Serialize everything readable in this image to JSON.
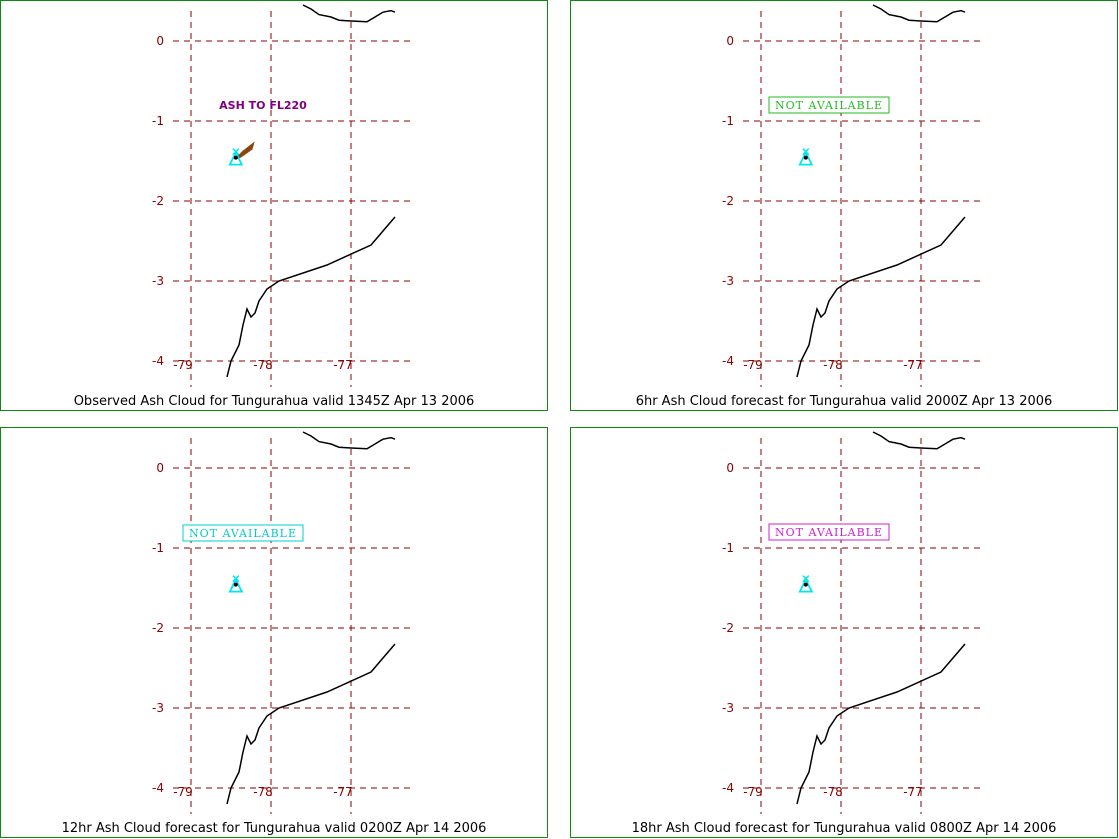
{
  "colors": {
    "panel_border": "#118811",
    "grid": "#8b0000",
    "tick_label": "#8b0000",
    "coastline": "#000000",
    "volcano_icon": "#00e5ee",
    "ash_cloud": "#8b4513",
    "ash_label": "#800080"
  },
  "map_frame": {
    "longitude_ticks": [
      -79,
      -78,
      -77
    ],
    "latitude_ticks": [
      0,
      -1,
      -2,
      -3,
      -4
    ],
    "longitude_range": [
      -79.1,
      -76.2
    ],
    "latitude_range": [
      0.4,
      -4.2
    ],
    "volcano": {
      "name": "Tungurahua",
      "lon": -78.44,
      "lat": -1.47,
      "icon": "volcano-icon"
    },
    "coastline_path_lonlat": [
      [
        -78.55,
        -4.2
      ],
      [
        -78.5,
        -4.0
      ],
      [
        -78.4,
        -3.8
      ],
      [
        -78.35,
        -3.55
      ],
      [
        -78.3,
        -3.35
      ],
      [
        -78.25,
        -3.45
      ],
      [
        -78.2,
        -3.4
      ],
      [
        -78.15,
        -3.25
      ],
      [
        -78.05,
        -3.1
      ],
      [
        -77.9,
        -3.0
      ],
      [
        -77.3,
        -2.8
      ],
      [
        -76.75,
        -2.55
      ],
      [
        -76.45,
        -2.2
      ]
    ],
    "north_border_path_lonlat": [
      [
        -77.6,
        0.45
      ],
      [
        -77.5,
        0.4
      ],
      [
        -77.4,
        0.33
      ],
      [
        -77.25,
        0.3
      ],
      [
        -77.15,
        0.26
      ],
      [
        -77.0,
        0.25
      ],
      [
        -76.8,
        0.24
      ],
      [
        -76.7,
        0.3
      ],
      [
        -76.6,
        0.36
      ],
      [
        -76.5,
        0.38
      ],
      [
        -76.45,
        0.36
      ]
    ]
  },
  "panels": [
    {
      "title": "Observed Ash Cloud for Tungurahua valid 1345Z Apr 13 2006",
      "status_text": "",
      "status_color": "",
      "ash_label": "ASH TO FL220",
      "ash_cloud_path_lonlat": [
        [
          -78.44,
          -1.47
        ],
        [
          -78.35,
          -1.38
        ],
        [
          -78.22,
          -1.28
        ],
        [
          -78.24,
          -1.35
        ],
        [
          -78.38,
          -1.45
        ]
      ]
    },
    {
      "title": "6hr Ash Cloud forecast for Tungurahua valid 2000Z Apr 13 2006",
      "status_text": "NOT AVAILABLE",
      "status_color": "#22bb22",
      "ash_label": "",
      "ash_cloud_path_lonlat": []
    },
    {
      "title": "12hr Ash Cloud forecast for Tungurahua valid 0200Z Apr 14 2006",
      "status_text": "NOT AVAILABLE",
      "status_color": "#00cccc",
      "ash_label": "",
      "ash_cloud_path_lonlat": []
    },
    {
      "title": "18hr Ash Cloud forecast for Tungurahua valid 0800Z Apr 14 2006",
      "status_text": "NOT AVAILABLE",
      "status_color": "#cc22cc",
      "ash_label": "",
      "ash_cloud_path_lonlat": []
    }
  ]
}
